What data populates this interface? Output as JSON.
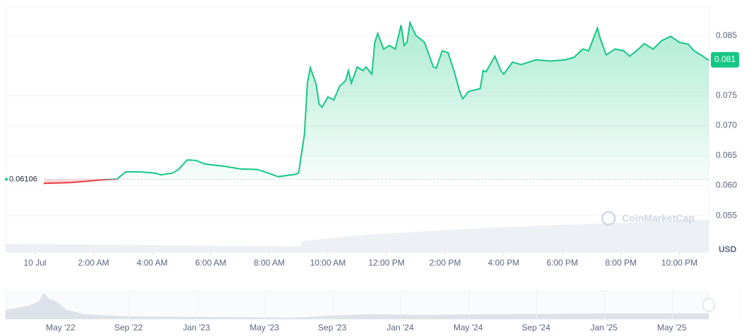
{
  "chart_data": {
    "type": "line",
    "x": [
      0.3,
      1.2,
      2.4,
      2.8,
      3.1,
      3.6,
      4.1,
      4.3,
      4.7,
      4.9,
      5.2,
      5.5,
      5.8,
      6.5,
      7.0,
      7.6,
      7.9,
      8.3,
      8.9,
      9.0,
      9.2,
      9.3,
      9.4,
      9.6,
      9.7,
      9.8,
      10.0,
      10.2,
      10.4,
      10.6,
      10.7,
      10.8,
      11.0,
      11.2,
      11.3,
      11.5,
      11.6,
      11.7,
      11.9,
      12.1,
      12.3,
      12.5,
      12.6,
      12.7,
      12.8,
      13.0,
      13.3,
      13.4,
      13.6,
      13.7,
      13.9,
      14.1,
      14.3,
      14.5,
      14.6,
      14.8,
      15.2,
      15.3,
      15.4,
      15.7,
      15.9,
      16.0,
      16.3,
      16.6,
      17.1,
      17.6,
      18.1,
      18.4,
      18.7,
      18.9,
      19.2,
      19.3,
      19.5,
      19.8,
      20.1,
      20.3,
      20.6,
      20.8,
      21.1,
      21.4,
      21.7,
      22.0,
      22.3,
      22.5,
      22.8,
      23.0
    ],
    "series": [
      {
        "values": [
          0.0604,
          0.0605,
          0.061,
          0.0611,
          0.0623,
          0.0623,
          0.0621,
          0.0618,
          0.0621,
          0.0627,
          0.0643,
          0.0642,
          0.0636,
          0.0632,
          0.0628,
          0.0627,
          0.0622,
          0.0615,
          0.0619,
          0.0621,
          0.0686,
          0.0771,
          0.0797,
          0.0769,
          0.0736,
          0.0731,
          0.0748,
          0.0743,
          0.0766,
          0.0775,
          0.0792,
          0.0771,
          0.0798,
          0.0792,
          0.0798,
          0.0786,
          0.0839,
          0.0854,
          0.0828,
          0.0834,
          0.0828,
          0.0868,
          0.0834,
          0.0839,
          0.0872,
          0.0851,
          0.0839,
          0.0825,
          0.0798,
          0.0796,
          0.0825,
          0.0822,
          0.0792,
          0.0757,
          0.0745,
          0.0757,
          0.0762,
          0.0792,
          0.079,
          0.0816,
          0.0792,
          0.0786,
          0.0806,
          0.0802,
          0.081,
          0.0808,
          0.081,
          0.0814,
          0.0828,
          0.0825,
          0.0863,
          0.0845,
          0.0818,
          0.0828,
          0.0825,
          0.0816,
          0.0828,
          0.0837,
          0.0828,
          0.0842,
          0.0849,
          0.0839,
          0.0836,
          0.0825,
          0.0816,
          0.0809
        ]
      }
    ],
    "xlim": [
      -1,
      23
    ],
    "xticks": [
      {
        "value": 0,
        "label": "10 Jul"
      },
      {
        "value": 2,
        "label": "2:00 AM"
      },
      {
        "value": 4,
        "label": "4:00 AM"
      },
      {
        "value": 6,
        "label": "6:00 AM"
      },
      {
        "value": 8,
        "label": "8:00 AM"
      },
      {
        "value": 10,
        "label": "10:00 AM"
      },
      {
        "value": 12,
        "label": "12:00 PM"
      },
      {
        "value": 14,
        "label": "2:00 PM"
      },
      {
        "value": 16,
        "label": "4:00 PM"
      },
      {
        "value": 18,
        "label": "6:00 PM"
      },
      {
        "value": 20,
        "label": "8:00 PM"
      },
      {
        "value": 22,
        "label": "10:00 PM"
      }
    ],
    "ylim": [
      0.0489,
      0.0898
    ],
    "yticks": [
      0.055,
      {
        "value": 0.06,
        "label": "0.060"
      },
      0.065,
      {
        "value": 0.07,
        "label": "0.070"
      },
      0.075,
      0.085
    ],
    "baseline": 0.06106,
    "last_price": 0.081,
    "currency": "USD",
    "watermark": "CoinMarketCap",
    "up_color": "#16c784",
    "down_color": "#ea3943",
    "grid": true,
    "navigator_labels": [
      "May '22",
      "Sep '22",
      "Jan '23",
      "May '23",
      "Sep '23",
      "Jan '24",
      "May '24",
      "Sep '24",
      "Jan '25",
      "May '25"
    ]
  }
}
